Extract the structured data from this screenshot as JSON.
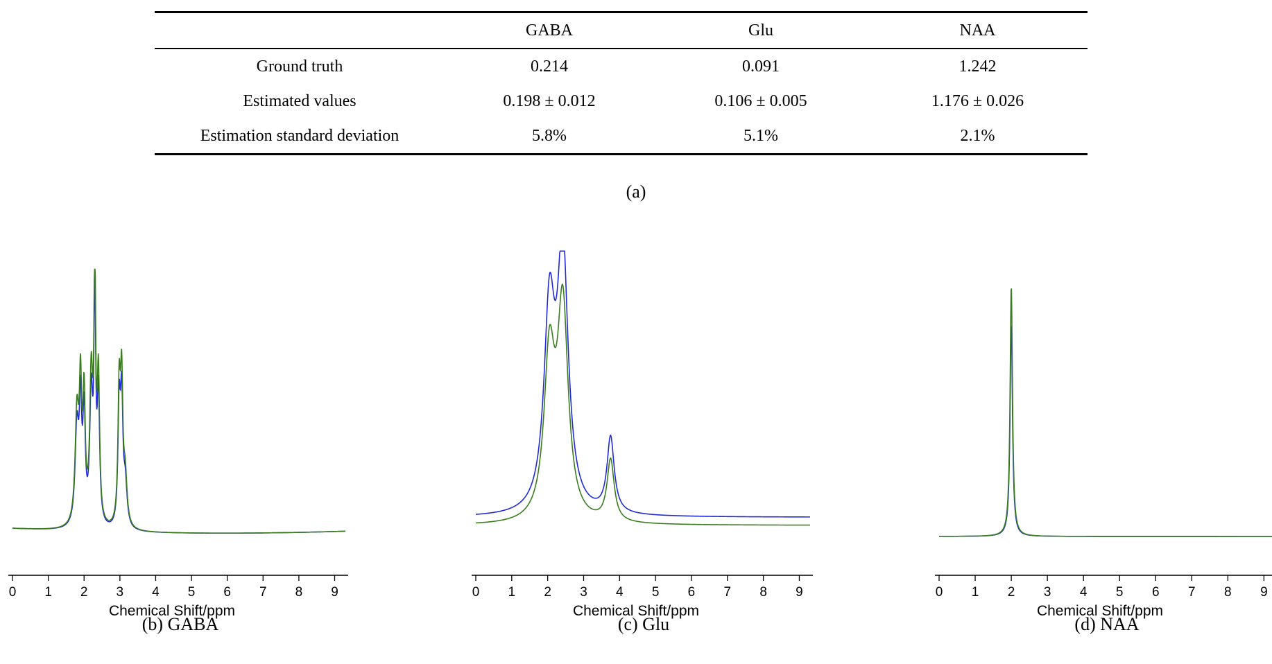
{
  "table": {
    "caption": "(a)",
    "columns": [
      "",
      "GABA",
      "Glu",
      "NAA"
    ],
    "rows": [
      [
        "Ground truth",
        "0.214",
        "0.091",
        "1.242"
      ],
      [
        "Estimated values",
        "0.198 ± 0.012",
        "0.106 ± 0.005",
        "1.176 ± 0.026"
      ],
      [
        "Estimation standard deviation",
        "5.8%",
        "5.1%",
        "2.1%"
      ]
    ]
  },
  "colors": {
    "series_blue": "#1f2ad6",
    "series_green": "#3a7d1e"
  },
  "chart_data": [
    {
      "type": "line",
      "caption": "(b) GABA",
      "xlabel": "Chemical Shift/ppm",
      "xticks": [
        "0",
        "1",
        "2",
        "3",
        "4",
        "5",
        "6",
        "7",
        "8",
        "9"
      ],
      "xlim": [
        0,
        9.3
      ],
      "ylim": [
        0,
        1
      ],
      "peaks": [
        {
          "center": 1.8,
          "height": 0.42,
          "width": 0.06
        },
        {
          "center": 1.9,
          "height": 0.48,
          "width": 0.04
        },
        {
          "center": 2.0,
          "height": 0.46,
          "width": 0.04
        },
        {
          "center": 2.2,
          "height": 0.55,
          "width": 0.05
        },
        {
          "center": 2.3,
          "height": 0.95,
          "width": 0.03
        },
        {
          "center": 2.4,
          "height": 0.55,
          "width": 0.04
        },
        {
          "center": 2.98,
          "height": 0.5,
          "width": 0.04
        },
        {
          "center": 3.05,
          "height": 0.52,
          "width": 0.04
        },
        {
          "center": 3.15,
          "height": 0.18,
          "width": 0.06
        }
      ],
      "series": [
        {
          "name": "blue",
          "scale": 0.88,
          "offset": 0.0
        },
        {
          "name": "green",
          "scale": 1.0,
          "offset": 0.0
        }
      ],
      "baseline": {
        "start": 0.03,
        "mid": 0.0,
        "end": 0.02
      }
    },
    {
      "type": "line",
      "caption": "(c) Glu",
      "xlabel": "Chemical Shift/ppm",
      "xticks": [
        "0",
        "1",
        "2",
        "3",
        "4",
        "5",
        "6",
        "7",
        "8",
        "9"
      ],
      "xlim": [
        0,
        9.3
      ],
      "ylim": [
        0,
        1
      ],
      "peaks": [
        {
          "center": 2.05,
          "height": 0.72,
          "width": 0.18
        },
        {
          "center": 2.42,
          "height": 0.95,
          "width": 0.18
        },
        {
          "center": 3.75,
          "height": 0.28,
          "width": 0.12
        }
      ],
      "series": [
        {
          "name": "blue",
          "scale": 1.0,
          "offset": 0.03
        },
        {
          "name": "green",
          "scale": 0.82,
          "offset": 0.0
        }
      ],
      "baseline": {
        "start": 0.0,
        "mid": 0.0,
        "end": 0.0
      }
    },
    {
      "type": "line",
      "caption": "(d) NAA",
      "xlabel": "Chemical Shift/ppm",
      "xticks": [
        "0",
        "1",
        "2",
        "3",
        "4",
        "5",
        "6",
        "7",
        "8",
        "9"
      ],
      "xlim": [
        0,
        9.3
      ],
      "ylim": [
        0,
        1
      ],
      "peaks": [
        {
          "center": 2.0,
          "height": 0.98,
          "width": 0.04
        }
      ],
      "series": [
        {
          "name": "blue",
          "scale": 0.85,
          "offset": 0.0
        },
        {
          "name": "green",
          "scale": 1.0,
          "offset": 0.0
        }
      ],
      "baseline": {
        "start": 0.0,
        "mid": 0.0,
        "end": 0.0
      }
    }
  ]
}
